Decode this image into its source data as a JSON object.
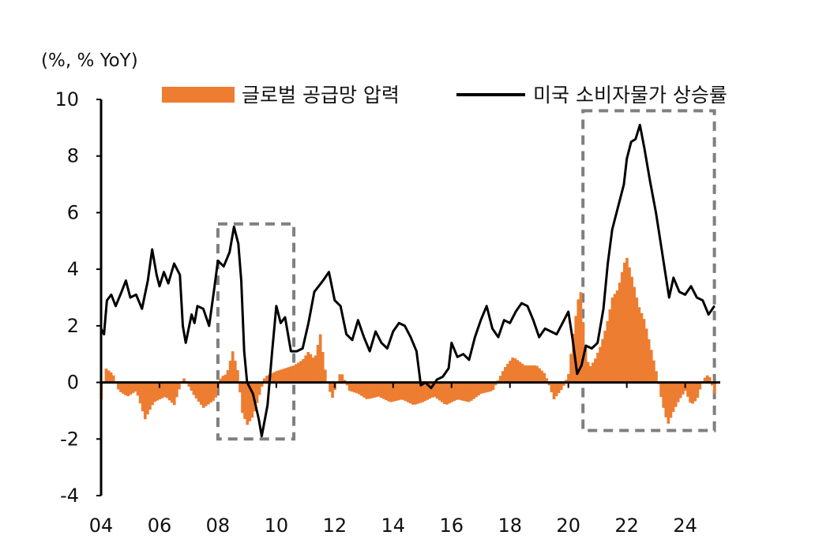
{
  "chart_data": {
    "type": "bar+line",
    "unit_label": "(%, % YoY)",
    "y_axis": {
      "min": -4,
      "max": 10,
      "ticks": [
        "10",
        "8",
        "6",
        "4",
        "2",
        "0",
        "-2",
        "-4"
      ]
    },
    "x_axis": {
      "start": 2004.0,
      "end": 2025.2,
      "ticks": [
        "04",
        "06",
        "08",
        "10",
        "12",
        "14",
        "16",
        "18",
        "20",
        "22",
        "24"
      ]
    },
    "colors": {
      "bars": "#ED7D31",
      "line": "#000000",
      "highlight_box": "#7F7F7F"
    },
    "highlight_boxes": [
      {
        "x_from": 2008.0,
        "x_to": 2010.6,
        "y_from": -2.0,
        "y_to": 5.6
      },
      {
        "x_from": 2020.5,
        "x_to": 2025.0,
        "y_from": -1.7,
        "y_to": 9.6
      }
    ],
    "series": [
      {
        "name": "글로벌 공급망 압력",
        "kind": "bar",
        "points": [
          [
            2004.0,
            -0.6
          ],
          [
            2004.15,
            0.5
          ],
          [
            2004.4,
            0.3
          ],
          [
            2004.6,
            -0.3
          ],
          [
            2004.9,
            -0.5
          ],
          [
            2005.2,
            -0.3
          ],
          [
            2005.5,
            -1.3
          ],
          [
            2005.8,
            -0.7
          ],
          [
            2006.2,
            -0.5
          ],
          [
            2006.5,
            -0.8
          ],
          [
            2006.8,
            0.2
          ],
          [
            2007.2,
            -0.5
          ],
          [
            2007.5,
            -0.9
          ],
          [
            2007.9,
            -0.6
          ],
          [
            2008.1,
            0.2
          ],
          [
            2008.3,
            0.3
          ],
          [
            2008.5,
            1.1
          ],
          [
            2008.7,
            0.3
          ],
          [
            2008.8,
            -1.0
          ],
          [
            2009.0,
            -1.5
          ],
          [
            2009.2,
            -1.2
          ],
          [
            2009.4,
            -0.5
          ],
          [
            2009.6,
            0.2
          ],
          [
            2009.8,
            0.3
          ],
          [
            2010.0,
            0.4
          ],
          [
            2010.3,
            0.5
          ],
          [
            2010.6,
            0.6
          ],
          [
            2010.9,
            0.8
          ],
          [
            2011.1,
            1.1
          ],
          [
            2011.3,
            0.8
          ],
          [
            2011.5,
            1.7
          ],
          [
            2011.7,
            0.2
          ],
          [
            2011.9,
            -0.6
          ],
          [
            2012.2,
            0.4
          ],
          [
            2012.5,
            -0.3
          ],
          [
            2012.8,
            -0.4
          ],
          [
            2013.1,
            -0.6
          ],
          [
            2013.5,
            -0.5
          ],
          [
            2013.9,
            -0.7
          ],
          [
            2014.3,
            -0.6
          ],
          [
            2014.7,
            -0.8
          ],
          [
            2015.0,
            -0.7
          ],
          [
            2015.4,
            -0.5
          ],
          [
            2015.8,
            -0.8
          ],
          [
            2016.2,
            -0.6
          ],
          [
            2016.6,
            -0.7
          ],
          [
            2017.0,
            -0.4
          ],
          [
            2017.4,
            -0.3
          ],
          [
            2017.8,
            0.5
          ],
          [
            2018.1,
            0.9
          ],
          [
            2018.5,
            0.6
          ],
          [
            2018.9,
            0.6
          ],
          [
            2019.2,
            0.3
          ],
          [
            2019.5,
            -0.6
          ],
          [
            2019.8,
            -0.2
          ],
          [
            2020.0,
            0.3
          ],
          [
            2020.2,
            2.0
          ],
          [
            2020.4,
            3.4
          ],
          [
            2020.55,
            1.5
          ],
          [
            2020.7,
            0.5
          ],
          [
            2020.9,
            0.8
          ],
          [
            2021.1,
            1.3
          ],
          [
            2021.3,
            2.0
          ],
          [
            2021.5,
            3.0
          ],
          [
            2021.7,
            3.3
          ],
          [
            2021.9,
            4.2
          ],
          [
            2022.0,
            4.4
          ],
          [
            2022.2,
            3.6
          ],
          [
            2022.4,
            2.7
          ],
          [
            2022.6,
            2.2
          ],
          [
            2022.8,
            1.3
          ],
          [
            2023.0,
            0.4
          ],
          [
            2023.2,
            -0.7
          ],
          [
            2023.4,
            -1.5
          ],
          [
            2023.6,
            -1.0
          ],
          [
            2023.8,
            -0.6
          ],
          [
            2024.0,
            -0.3
          ],
          [
            2024.2,
            -0.8
          ],
          [
            2024.4,
            -0.6
          ],
          [
            2024.6,
            0.1
          ],
          [
            2024.8,
            0.3
          ],
          [
            2025.0,
            -0.4
          ]
        ]
      },
      {
        "name": "미국 소비자물가 상승률",
        "kind": "line",
        "points": [
          [
            2004.0,
            1.9
          ],
          [
            2004.1,
            1.7
          ],
          [
            2004.2,
            2.9
          ],
          [
            2004.35,
            3.1
          ],
          [
            2004.5,
            2.7
          ],
          [
            2004.7,
            3.2
          ],
          [
            2004.85,
            3.6
          ],
          [
            2005.0,
            3.0
          ],
          [
            2005.2,
            3.1
          ],
          [
            2005.4,
            2.6
          ],
          [
            2005.6,
            3.6
          ],
          [
            2005.75,
            4.7
          ],
          [
            2005.9,
            3.8
          ],
          [
            2006.0,
            3.4
          ],
          [
            2006.15,
            3.9
          ],
          [
            2006.3,
            3.5
          ],
          [
            2006.5,
            4.2
          ],
          [
            2006.7,
            3.8
          ],
          [
            2006.8,
            2.0
          ],
          [
            2006.9,
            1.4
          ],
          [
            2007.1,
            2.4
          ],
          [
            2007.2,
            2.1
          ],
          [
            2007.3,
            2.7
          ],
          [
            2007.5,
            2.6
          ],
          [
            2007.7,
            2.0
          ],
          [
            2007.9,
            3.5
          ],
          [
            2008.0,
            4.3
          ],
          [
            2008.2,
            4.1
          ],
          [
            2008.4,
            4.6
          ],
          [
            2008.55,
            5.5
          ],
          [
            2008.7,
            4.9
          ],
          [
            2008.8,
            3.6
          ],
          [
            2008.9,
            1.1
          ],
          [
            2009.0,
            0.0
          ],
          [
            2009.2,
            -0.4
          ],
          [
            2009.4,
            -1.3
          ],
          [
            2009.5,
            -1.9
          ],
          [
            2009.7,
            -0.8
          ],
          [
            2009.85,
            1.0
          ],
          [
            2010.0,
            2.7
          ],
          [
            2010.15,
            2.1
          ],
          [
            2010.3,
            2.3
          ],
          [
            2010.5,
            1.1
          ],
          [
            2010.7,
            1.1
          ],
          [
            2010.9,
            1.2
          ],
          [
            2011.1,
            2.1
          ],
          [
            2011.3,
            3.2
          ],
          [
            2011.6,
            3.6
          ],
          [
            2011.8,
            3.9
          ],
          [
            2012.0,
            2.9
          ],
          [
            2012.2,
            2.7
          ],
          [
            2012.4,
            1.7
          ],
          [
            2012.6,
            1.5
          ],
          [
            2012.8,
            2.2
          ],
          [
            2013.0,
            1.6
          ],
          [
            2013.2,
            1.1
          ],
          [
            2013.4,
            1.8
          ],
          [
            2013.6,
            1.4
          ],
          [
            2013.8,
            1.2
          ],
          [
            2014.0,
            1.8
          ],
          [
            2014.2,
            2.1
          ],
          [
            2014.4,
            2.0
          ],
          [
            2014.6,
            1.6
          ],
          [
            2014.8,
            1.1
          ],
          [
            2014.95,
            -0.1
          ],
          [
            2015.1,
            0.0
          ],
          [
            2015.3,
            -0.2
          ],
          [
            2015.5,
            0.1
          ],
          [
            2015.7,
            0.2
          ],
          [
            2015.9,
            0.5
          ],
          [
            2016.0,
            1.4
          ],
          [
            2016.2,
            0.9
          ],
          [
            2016.4,
            1.0
          ],
          [
            2016.6,
            0.8
          ],
          [
            2016.8,
            1.6
          ],
          [
            2017.0,
            2.2
          ],
          [
            2017.2,
            2.7
          ],
          [
            2017.4,
            1.9
          ],
          [
            2017.6,
            1.6
          ],
          [
            2017.8,
            2.2
          ],
          [
            2018.0,
            2.1
          ],
          [
            2018.2,
            2.5
          ],
          [
            2018.4,
            2.8
          ],
          [
            2018.6,
            2.7
          ],
          [
            2018.8,
            2.2
          ],
          [
            2019.0,
            1.6
          ],
          [
            2019.2,
            1.9
          ],
          [
            2019.4,
            1.8
          ],
          [
            2019.6,
            1.7
          ],
          [
            2019.8,
            2.1
          ],
          [
            2020.0,
            2.5
          ],
          [
            2020.15,
            1.5
          ],
          [
            2020.3,
            0.3
          ],
          [
            2020.45,
            0.6
          ],
          [
            2020.6,
            1.3
          ],
          [
            2020.8,
            1.2
          ],
          [
            2021.0,
            1.4
          ],
          [
            2021.2,
            2.6
          ],
          [
            2021.35,
            4.2
          ],
          [
            2021.5,
            5.4
          ],
          [
            2021.7,
            6.2
          ],
          [
            2021.9,
            7.0
          ],
          [
            2022.0,
            7.9
          ],
          [
            2022.15,
            8.5
          ],
          [
            2022.3,
            8.6
          ],
          [
            2022.45,
            9.1
          ],
          [
            2022.6,
            8.3
          ],
          [
            2022.8,
            7.1
          ],
          [
            2023.0,
            6.0
          ],
          [
            2023.15,
            5.0
          ],
          [
            2023.3,
            4.0
          ],
          [
            2023.45,
            3.0
          ],
          [
            2023.6,
            3.7
          ],
          [
            2023.8,
            3.2
          ],
          [
            2024.0,
            3.1
          ],
          [
            2024.2,
            3.4
          ],
          [
            2024.4,
            3.0
          ],
          [
            2024.6,
            2.9
          ],
          [
            2024.8,
            2.4
          ],
          [
            2025.0,
            2.7
          ]
        ]
      }
    ]
  }
}
